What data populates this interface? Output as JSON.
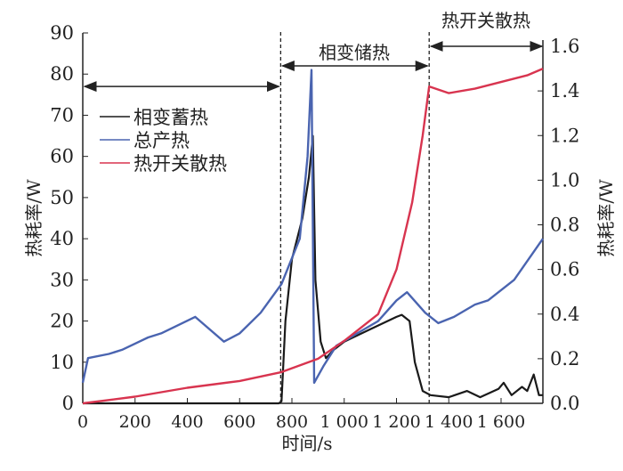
{
  "chart_data": {
    "type": "line",
    "xlabel": "时间/s",
    "ylabel_left": "热耗率/W",
    "ylabel_right": "热耗率/W",
    "xlim": [
      0,
      1760
    ],
    "ylim_left": [
      0,
      90
    ],
    "ylim_right": [
      0,
      1.6
    ],
    "x_ticks": [
      0,
      200,
      400,
      600,
      800,
      1000,
      1200,
      1400,
      1600
    ],
    "x_tick_labels": [
      "0",
      "200",
      "400",
      "600",
      "800",
      "1 000",
      "1 200",
      "1 400",
      "1 600"
    ],
    "y_left_ticks": [
      0,
      10,
      20,
      30,
      40,
      50,
      60,
      70,
      80,
      90
    ],
    "y_left_tick_labels": [
      "0",
      "10",
      "20",
      "30",
      "40",
      "50",
      "60",
      "70",
      "80",
      "90"
    ],
    "y_right_ticks": [
      0,
      0.2,
      0.4,
      0.6,
      0.8,
      1.0,
      1.2,
      1.4,
      1.6
    ],
    "y_right_tick_labels": [
      "0.0",
      "0.2",
      "0.4",
      "0.6",
      "0.8",
      "1.0",
      "1.2",
      "1.4",
      "1.6"
    ],
    "grid": false,
    "legend_position": "upper-left",
    "phase_boundaries": [
      757,
      1325
    ],
    "annotations": [
      {
        "text": "",
        "range": [
          0,
          757
        ],
        "arrow_level_left": 77
      },
      {
        "text": "相变储热",
        "range": [
          757,
          1325
        ],
        "arrow_level_left": 82
      },
      {
        "text": "热开关散热",
        "range": [
          1325,
          1760
        ],
        "arrow_level_right": 1.6
      }
    ],
    "series": [
      {
        "name": "相变蓄热",
        "color": "#1a1a1a",
        "axis": "left",
        "x": [
          0,
          750,
          760,
          775,
          800,
          840,
          865,
          880,
          890,
          910,
          930,
          960,
          1000,
          1100,
          1200,
          1220,
          1250,
          1270,
          1300,
          1330,
          1400,
          1470,
          1520,
          1590,
          1610,
          1640,
          1680,
          1700,
          1725,
          1745,
          1760
        ],
        "y": [
          0,
          0,
          0.5,
          20,
          35,
          45,
          55,
          65,
          30,
          15,
          11,
          13,
          15,
          18,
          21,
          21.5,
          20,
          10,
          3,
          2,
          1.5,
          3,
          1.5,
          3.5,
          5,
          2,
          4,
          3,
          7,
          2,
          2
        ]
      },
      {
        "name": "总产热",
        "color": "#4a64b0",
        "axis": "left",
        "x": [
          0,
          20,
          100,
          150,
          250,
          300,
          430,
          540,
          600,
          680,
          760,
          830,
          860,
          875,
          885,
          920,
          970,
          1050,
          1130,
          1200,
          1240,
          1310,
          1360,
          1420,
          1500,
          1550,
          1650,
          1760
        ],
        "y": [
          5,
          11,
          12,
          13,
          16,
          17,
          21,
          15,
          17,
          22,
          29,
          40,
          60,
          81,
          5,
          9,
          14,
          17,
          20,
          25,
          27,
          22,
          19.5,
          21,
          24,
          25,
          30,
          40
        ]
      },
      {
        "name": "热开关散热",
        "color": "#d8344f",
        "axis": "right",
        "x": [
          0,
          200,
          400,
          600,
          760,
          900,
          1000,
          1130,
          1200,
          1260,
          1300,
          1325,
          1400,
          1500,
          1600,
          1700,
          1760
        ],
        "y": [
          0,
          0.03,
          0.07,
          0.1,
          0.14,
          0.2,
          0.28,
          0.4,
          0.6,
          0.9,
          1.2,
          1.42,
          1.39,
          1.41,
          1.44,
          1.47,
          1.5
        ]
      }
    ]
  }
}
